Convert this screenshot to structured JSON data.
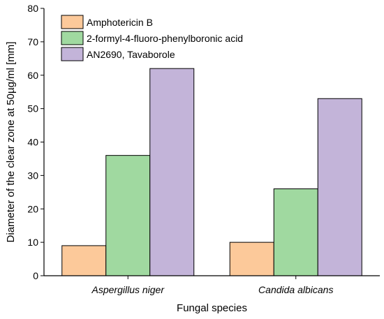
{
  "chart_data": {
    "type": "bar",
    "title": "",
    "xlabel": "Fungal species",
    "ylabel": "Diameter of the clear zone at 50µg/ml [mm]",
    "categories": [
      "Aspergillus niger",
      "Candida albicans"
    ],
    "series": [
      {
        "name": "Amphotericin B",
        "values": [
          9,
          10
        ],
        "color": "#fcc99a"
      },
      {
        "name": "2-formyl-4-fluoro-phenylboronic acid",
        "values": [
          36,
          26
        ],
        "color": "#a0d9a0"
      },
      {
        "name": "AN2690, Tavaborole",
        "values": [
          62,
          53
        ],
        "color": "#c3b4d9"
      }
    ],
    "ylim": [
      0,
      80
    ],
    "yticks": [
      "0",
      "10",
      "20",
      "30",
      "40",
      "50",
      "60",
      "70",
      "80"
    ],
    "grid": false,
    "legend_position": "top-left"
  }
}
